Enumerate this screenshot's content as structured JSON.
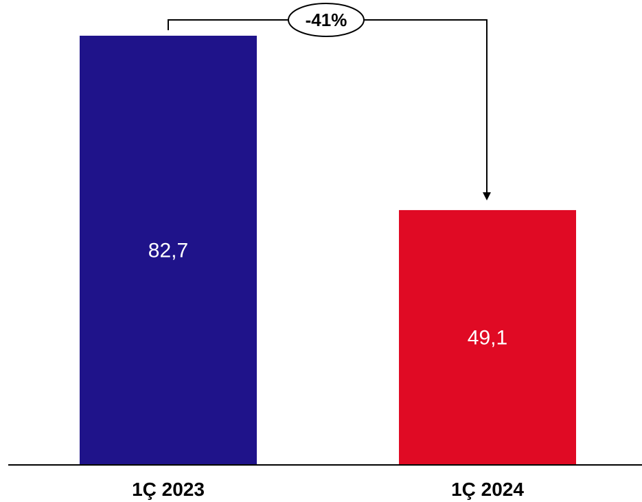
{
  "chart_data": {
    "type": "bar",
    "categories": [
      "1Ç 2023",
      "1Ç 2024"
    ],
    "values": [
      82.7,
      49.1
    ],
    "value_labels": [
      "82,7",
      "49,1"
    ],
    "colors": [
      "#1f138a",
      "#e00a24"
    ],
    "title": "",
    "xlabel": "",
    "ylabel": "",
    "ylim": [
      0,
      82.7
    ],
    "grid": false,
    "annotation": {
      "type": "change-arrow",
      "from": "1Ç 2023",
      "to": "1Ç 2024",
      "text": "-41%"
    }
  }
}
